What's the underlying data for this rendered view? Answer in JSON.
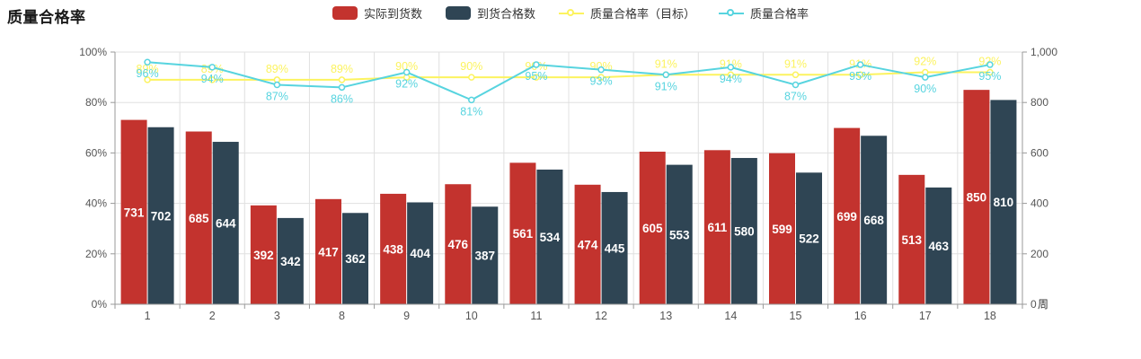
{
  "title": "质量合格率",
  "legend": {
    "items": [
      {
        "label": "实际到货数",
        "marker": "bar",
        "color": "#c3332e"
      },
      {
        "label": "到货合格数",
        "marker": "bar",
        "color": "#2f4554"
      },
      {
        "label": "质量合格率（目标）",
        "marker": "line",
        "color": "#fcf35f"
      },
      {
        "label": "质量合格率",
        "marker": "line",
        "color": "#57d4df"
      }
    ]
  },
  "chart_data": {
    "type": "combo-bar-line",
    "categories": [
      "1",
      "2",
      "3",
      "8",
      "9",
      "10",
      "11",
      "12",
      "13",
      "14",
      "15",
      "16",
      "17",
      "18"
    ],
    "series": [
      {
        "name": "实际到货数",
        "type": "bar",
        "axis": "right",
        "color": "#c3332e",
        "values": [
          731,
          685,
          392,
          417,
          438,
          476,
          561,
          474,
          605,
          611,
          599,
          699,
          513,
          850
        ]
      },
      {
        "name": "到货合格数",
        "type": "bar",
        "axis": "right",
        "color": "#2f4554",
        "values": [
          702,
          644,
          342,
          362,
          404,
          387,
          534,
          445,
          553,
          580,
          522,
          668,
          463,
          810
        ]
      },
      {
        "name": "质量合格率（目标）",
        "type": "line",
        "axis": "left",
        "color": "#fcf35f",
        "label_position": "top",
        "label_suffix": "%",
        "values": [
          89,
          89,
          89,
          89,
          90,
          90,
          90,
          90,
          91,
          91,
          91,
          91,
          92,
          92
        ]
      },
      {
        "name": "质量合格率",
        "type": "line",
        "axis": "left",
        "color": "#57d4df",
        "label_position": "bottom",
        "label_suffix": "%",
        "values": [
          96,
          94,
          87,
          86,
          92,
          81,
          95,
          93,
          91,
          94,
          87,
          95,
          90,
          95
        ]
      }
    ],
    "left_axis": {
      "min": 0,
      "max": 100,
      "ticks": [
        "0%",
        "20%",
        "40%",
        "60%",
        "80%",
        "100%"
      ]
    },
    "right_axis": {
      "min": 0,
      "max": 1000,
      "ticks": [
        "0",
        "200",
        "400",
        "600",
        "800",
        "1,000"
      ]
    },
    "x_axis_name": "周",
    "grid": true,
    "legend_position": "top"
  },
  "style_colors": {
    "grid_line": "#e0e0e0",
    "axis_line": "#999999",
    "tick_label": "#555555",
    "bar_value_label": "#ffffff"
  }
}
